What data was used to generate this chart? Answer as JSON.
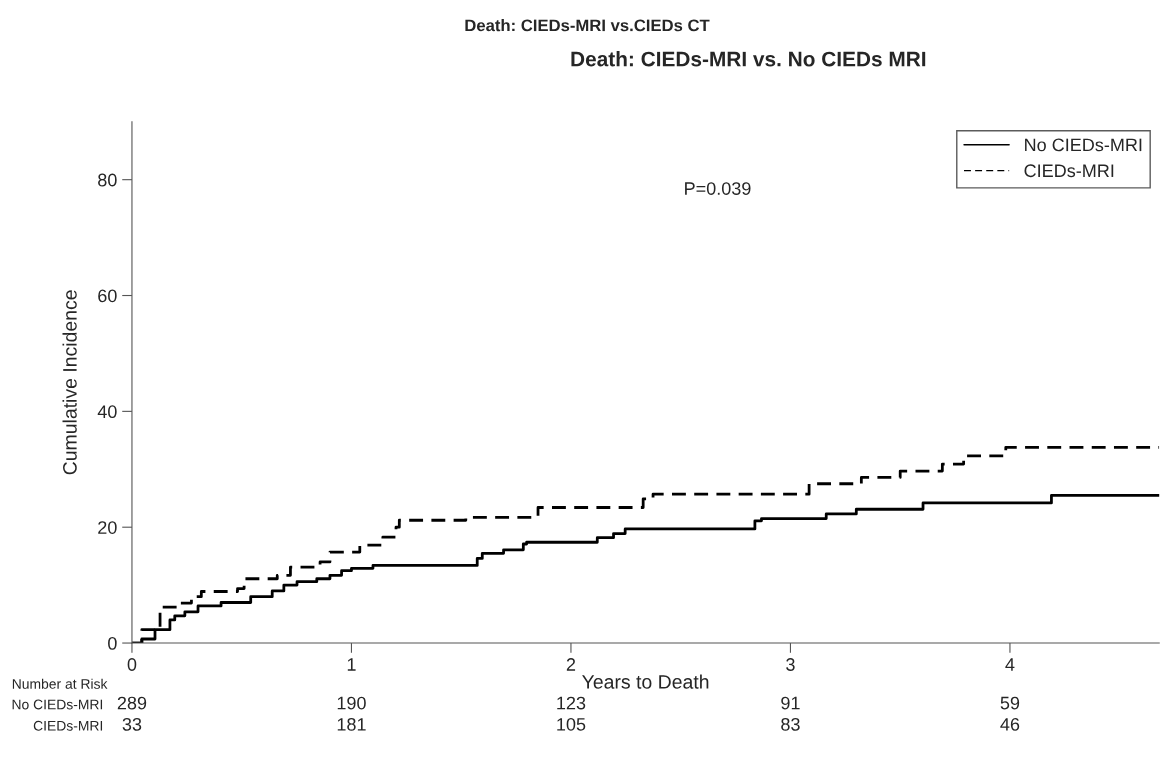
{
  "chart_data": {
    "type": "step",
    "title": "Death: CIEDs-MRI vs.CIEDs CT",
    "subtitle": "Death: CIEDs-MRI vs. No CIEDs MRI",
    "xlabel": "Years to Death",
    "ylabel": "Cumulative Incidence",
    "xlim": [
      0,
      4.68
    ],
    "xticks": [
      0,
      1,
      2,
      3,
      4
    ],
    "ylim": [
      0,
      90
    ],
    "yticks": [
      0,
      20,
      40,
      60,
      80
    ],
    "grid": false,
    "legend": "top right",
    "series": [
      {
        "name": "No CIEDs-MRI",
        "color": "#000000",
        "line_style": "solid",
        "x": [
          0,
          0.045,
          0.105,
          0.173,
          0.195,
          0.241,
          0.301,
          0.406,
          0.541,
          0.639,
          0.692,
          0.752,
          0.842,
          0.902,
          0.955,
          1.0,
          1.098,
          1.573,
          1.596,
          1.693,
          1.783,
          1.798,
          2.12,
          2.194,
          2.247,
          2.838,
          2.868,
          3.163,
          3.3,
          3.604,
          4.189,
          4.68
        ],
        "values": [
          0,
          0.7,
          2.3,
          4.0,
          4.7,
          5.4,
          6.4,
          7.0,
          8.0,
          9.0,
          10.0,
          10.6,
          11.1,
          11.7,
          12.5,
          12.9,
          13.4,
          14.6,
          15.5,
          16.1,
          17.1,
          17.4,
          18.2,
          18.9,
          19.7,
          21.1,
          21.5,
          22.3,
          23.1,
          24.2,
          25.5,
          25.5
        ]
      },
      {
        "name": "CIEDs-MRI",
        "color": "#000000",
        "line_style": "dashed",
        "x": [
          0,
          0.045,
          0.128,
          0.211,
          0.271,
          0.316,
          0.481,
          0.511,
          0.662,
          0.722,
          0.857,
          0.902,
          1.038,
          1.143,
          1.203,
          1.218,
          1.521,
          1.85,
          2.329,
          2.374,
          3.085,
          3.323,
          3.5,
          3.692,
          3.789,
          3.981,
          4.68
        ],
        "values": [
          0,
          2.3,
          6.2,
          6.9,
          8.0,
          8.9,
          9.4,
          11.1,
          11.7,
          13.1,
          14.0,
          15.7,
          16.9,
          18.3,
          20.0,
          21.2,
          21.7,
          23.4,
          24.9,
          25.7,
          27.5,
          28.6,
          29.7,
          30.9,
          32.3,
          33.8,
          33.8
        ]
      }
    ],
    "annotations": [
      "P=0.039",
      "Number at Risk",
      "No CIEDs-MRI",
      "289",
      "190",
      "123",
      "91",
      "59",
      "CIEDs-MRI",
      "33",
      "181",
      "105",
      "83",
      "46"
    ]
  }
}
